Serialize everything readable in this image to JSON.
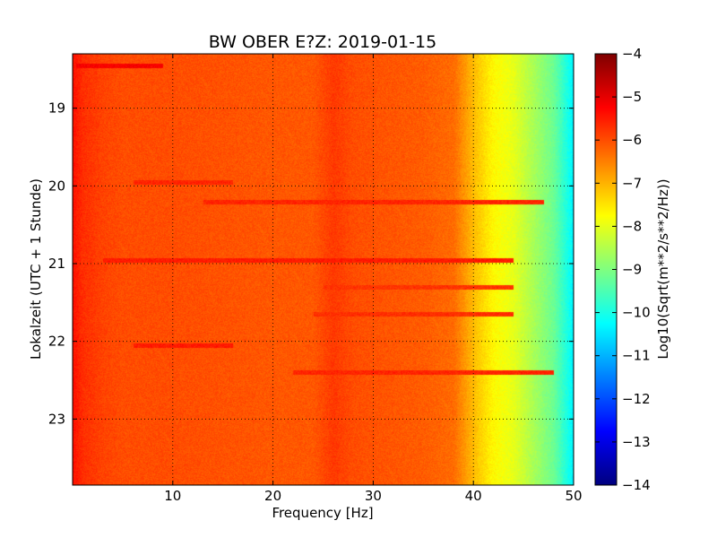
{
  "chart_data": {
    "type": "heatmap",
    "title": "BW OBER E?Z: 2019-01-15",
    "xlabel": "Frequency [Hz]",
    "ylabel": "Lokalzeit (UTC + 1 Stunde)",
    "xlim": [
      0,
      50
    ],
    "ylim": [
      18.3,
      23.85
    ],
    "y_inverted": true,
    "x_ticks": [
      10,
      20,
      30,
      40,
      50
    ],
    "y_ticks": [
      19,
      20,
      21,
      22,
      23
    ],
    "grid": true,
    "colormap": "jet",
    "colorbar": {
      "label": "Log10(Sqrt(m**2/s**2/Hz))",
      "range": [
        -14,
        -4
      ],
      "ticks": [
        -4,
        -5,
        -6,
        -7,
        -8,
        -9,
        -10,
        -11,
        -12,
        -13,
        -14
      ]
    },
    "frequency_profile": {
      "frequency_hz": [
        0,
        1,
        3,
        5,
        10,
        15,
        20,
        24,
        26,
        28,
        30,
        35,
        38,
        40,
        42,
        44,
        46,
        48,
        50
      ],
      "log10_level": [
        -5.4,
        -5.7,
        -5.9,
        -6.0,
        -6.0,
        -6.05,
        -6.1,
        -6.1,
        -5.8,
        -6.0,
        -6.05,
        -6.15,
        -6.3,
        -7.1,
        -7.7,
        -8.0,
        -8.6,
        -9.2,
        -10.4
      ]
    },
    "bands": [
      {
        "time": 18.45,
        "f_start": 0.3,
        "f_end": 9,
        "log10_level": -5.2
      },
      {
        "time": 19.95,
        "f_start": 6,
        "f_end": 16,
        "log10_level": -5.6
      },
      {
        "time": 20.2,
        "f_start": 13,
        "f_end": 47,
        "log10_level": -5.6
      },
      {
        "time": 20.95,
        "f_start": 3,
        "f_end": 44,
        "log10_level": -5.5
      },
      {
        "time": 21.3,
        "f_start": 25,
        "f_end": 44,
        "log10_level": -5.75
      },
      {
        "time": 21.65,
        "f_start": 24,
        "f_end": 44,
        "log10_level": -5.7
      },
      {
        "time": 22.05,
        "f_start": 6,
        "f_end": 16,
        "log10_level": -5.5
      },
      {
        "time": 22.4,
        "f_start": 22,
        "f_end": 48,
        "log10_level": -5.6
      }
    ]
  }
}
